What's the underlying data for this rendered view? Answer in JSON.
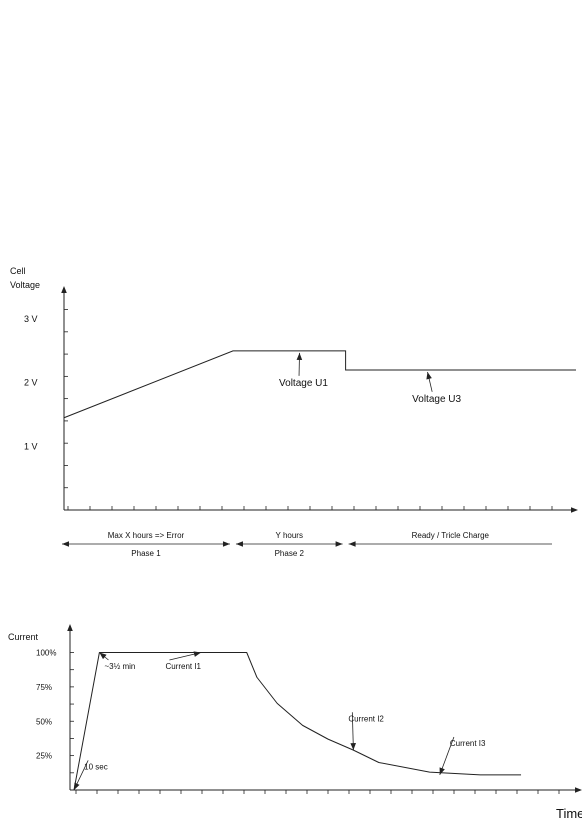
{
  "colors": {
    "line": "#222222",
    "axis": "#222222",
    "background": "#ffffff"
  },
  "chart_data": [
    {
      "type": "line",
      "ylabel": [
        "Cell",
        "Voltage"
      ],
      "yticks": [
        "3 V",
        "2 V",
        "1 V"
      ],
      "ytick_values": [
        3,
        2,
        1
      ],
      "ylim": [
        0,
        3.3
      ],
      "xlim": [
        0,
        100
      ],
      "series": [
        {
          "x": [
            0,
            33,
            55,
            55,
            100
          ],
          "y": [
            1.45,
            2.5,
            2.5,
            2.2,
            2.2
          ]
        }
      ],
      "annotations": [
        {
          "text": "Voltage U1",
          "target": [
            46,
            2.5
          ],
          "label_at": [
            42,
            1.95
          ]
        },
        {
          "text": "Voltage U3",
          "target": [
            71,
            2.2
          ],
          "label_at": [
            68,
            1.7
          ]
        }
      ],
      "phases": [
        {
          "top": "Max X hours => Error",
          "bottom": "Phase 1",
          "range": [
            0,
            33
          ]
        },
        {
          "top": "Y hours",
          "bottom": "Phase 2",
          "range": [
            33,
            55
          ]
        },
        {
          "top": "Ready / Tricle Charge",
          "bottom": "",
          "range": [
            55,
            89
          ]
        }
      ]
    },
    {
      "type": "line",
      "ylabel": "Current",
      "xlabel": "Time",
      "yticks": [
        "100%",
        "75%",
        "50%",
        "25%"
      ],
      "ytick_values": [
        100,
        75,
        50,
        25
      ],
      "ylim": [
        0,
        112
      ],
      "xlim": [
        0,
        100
      ],
      "series": [
        {
          "x": [
            0,
            5,
            34,
            36,
            40,
            45,
            50,
            55,
            60,
            70,
            80,
            88
          ],
          "y": [
            0,
            100,
            100,
            82,
            63,
            47,
            37,
            29,
            20,
            13,
            11,
            11
          ]
        }
      ],
      "annotations": [
        {
          "text": "10 sec",
          "target": [
            0,
            0
          ],
          "label_at": [
            2,
            15
          ]
        },
        {
          "text": "~3½ min",
          "target": [
            5,
            100
          ],
          "label_at": [
            6,
            88
          ]
        },
        {
          "text": "Current I1",
          "target": [
            25,
            100
          ],
          "label_at": [
            18,
            88
          ]
        },
        {
          "text": "Current I2",
          "target": [
            55,
            29
          ],
          "label_at": [
            54,
            50
          ]
        },
        {
          "text": "Current I3",
          "target": [
            72,
            11
          ],
          "label_at": [
            74,
            32
          ]
        }
      ]
    }
  ]
}
